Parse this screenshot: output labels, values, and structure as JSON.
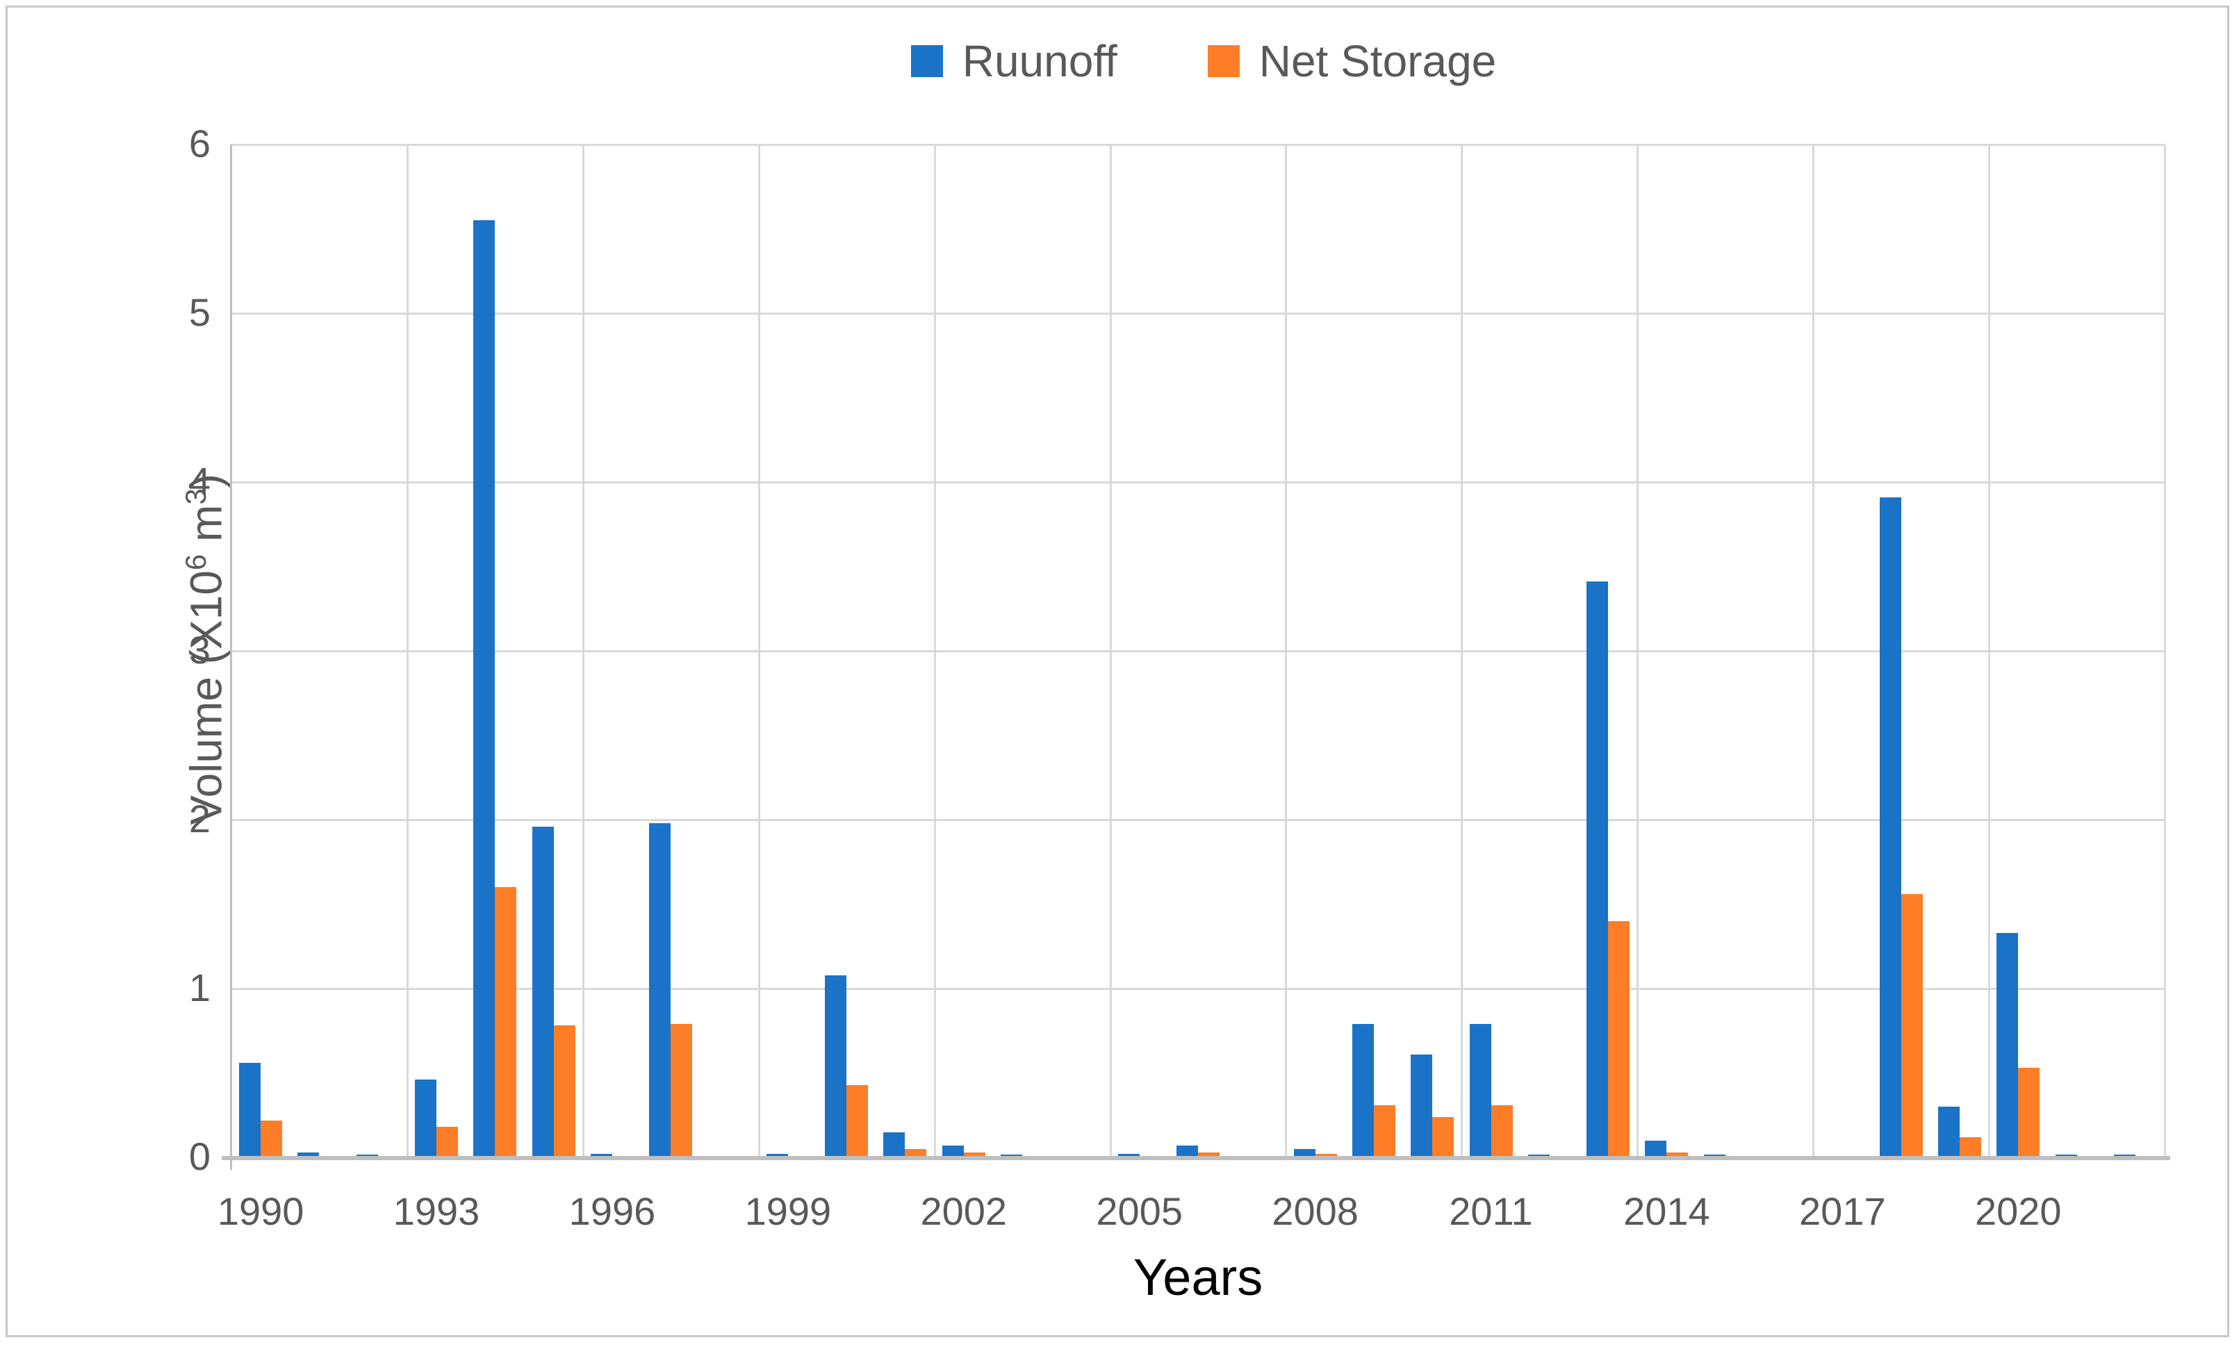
{
  "legend": {
    "items": [
      {
        "label": "Ruunoff",
        "color": "#1B73C7"
      },
      {
        "label": "Net Storage",
        "color": "#FD7E27"
      }
    ]
  },
  "axes": {
    "x_label": "Years",
    "y_label_parts": {
      "pre": "Volume (X10",
      "sup1": "6",
      "mid": " m",
      "sup2": "3",
      "post": ")"
    }
  },
  "chart_data": {
    "type": "bar",
    "title": "",
    "xlabel": "Years",
    "ylabel": "Volume (X10^6 m^3)",
    "ylim": [
      0,
      6
    ],
    "y_ticks": [
      0,
      1,
      2,
      3,
      4,
      5,
      6
    ],
    "x_tick_interval": 3,
    "x_tick_labels": [
      "1990",
      "1993",
      "1996",
      "1999",
      "2002",
      "2005",
      "2008",
      "2011",
      "2014",
      "2017",
      "2020"
    ],
    "grid": true,
    "legend_position": "top-center",
    "categories": [
      1990,
      1991,
      1992,
      1993,
      1994,
      1995,
      1996,
      1997,
      1998,
      1999,
      2000,
      2001,
      2002,
      2003,
      2004,
      2005,
      2006,
      2007,
      2008,
      2009,
      2010,
      2011,
      2012,
      2013,
      2014,
      2015,
      2016,
      2017,
      2018,
      2019,
      2020,
      2021,
      2022
    ],
    "series": [
      {
        "name": "Ruunoff",
        "color": "#1B73C7",
        "values": [
          0.56,
          0.03,
          0.01,
          0.46,
          5.55,
          1.96,
          0.02,
          1.98,
          0,
          0.02,
          1.08,
          0.15,
          0.07,
          0.01,
          0,
          0.02,
          0.07,
          0,
          0.05,
          0.79,
          0.61,
          0.79,
          0.01,
          3.41,
          0.1,
          0.01,
          0,
          0,
          3.91,
          0.3,
          1.33,
          0.01,
          0.01
        ]
      },
      {
        "name": "Net Storage",
        "color": "#FD7E27",
        "values": [
          0.22,
          0,
          0,
          0.18,
          1.6,
          0.78,
          0,
          0.79,
          0,
          0,
          0.43,
          0.05,
          0.03,
          0,
          0,
          0,
          0.03,
          0,
          0.02,
          0.31,
          0.24,
          0.31,
          0,
          1.4,
          0.03,
          0,
          0,
          0,
          1.56,
          0.12,
          0.53,
          0,
          0
        ]
      }
    ],
    "colors": {
      "grid": "#d9d9d9",
      "axis_line": "#bfbfbf",
      "tick_text": "#595959",
      "xlabel_text": "#000000"
    }
  }
}
